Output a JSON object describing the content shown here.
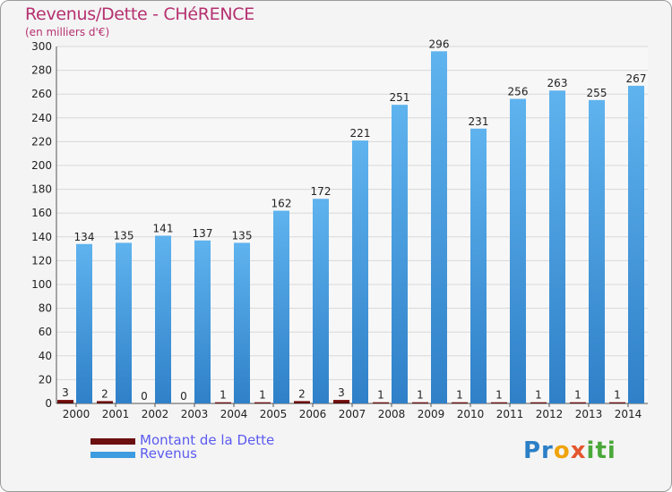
{
  "chart_data": {
    "type": "bar",
    "title": "Revenus/Dette - CHéRENCE",
    "subtitle": "(en milliers d'€)",
    "categories": [
      "2000",
      "2001",
      "2002",
      "2003",
      "2004",
      "2005",
      "2006",
      "2007",
      "2008",
      "2009",
      "2010",
      "2011",
      "2012",
      "2013",
      "2014"
    ],
    "series": [
      {
        "name": "Montant de la Dette",
        "color": "#6b0f0f",
        "values": [
          3,
          2,
          0,
          0,
          1,
          1,
          2,
          3,
          1,
          1,
          1,
          1,
          1,
          1,
          1
        ]
      },
      {
        "name": "Revenus",
        "color": "#3d9be0",
        "values": [
          134,
          135,
          141,
          137,
          135,
          162,
          172,
          221,
          251,
          296,
          231,
          256,
          263,
          255,
          267
        ]
      }
    ],
    "ylim": [
      0,
      300
    ],
    "yticks": [
      0,
      20,
      40,
      60,
      80,
      100,
      120,
      140,
      160,
      180,
      200,
      220,
      240,
      260,
      280,
      300
    ],
    "grid": true,
    "legend_position": "bottom-left"
  },
  "brand": {
    "logo_text_parts": [
      "Pr",
      "o",
      "x",
      "iti"
    ]
  }
}
